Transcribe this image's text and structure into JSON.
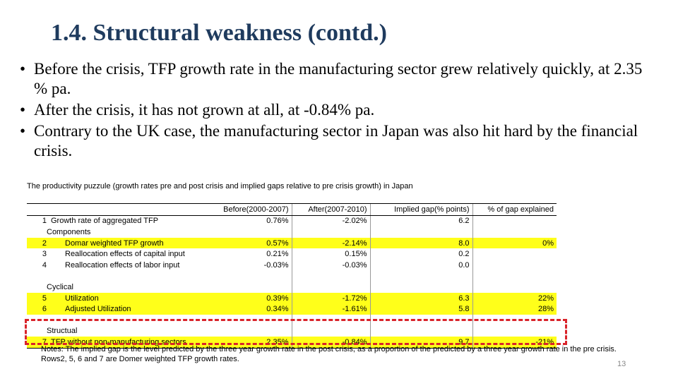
{
  "title": "1.4. Structural weakness (contd.)",
  "bullets": [
    "Before the crisis, TFP growth rate in the manufacturing sector grew relatively quickly, at 2.35 % pa.",
    "After the crisis, it has not grown at all, at -0.84% pa.",
    "Contrary to the UK case, the manufacturing sector in Japan was also hit hard by the financial crisis."
  ],
  "bullet_marker": "•",
  "table": {
    "caption": "The productivity puzzule (growth rates pre and post crisis and implied gaps relative to pre crisis growth) in Japan",
    "headers": [
      "",
      "Before(2000-2007)",
      "After(2007-2010)",
      "Implied gap(% points)",
      "% of gap explained"
    ],
    "rows": [
      {
        "num": "1",
        "label": "Growth rate of aggregated TFP",
        "before": "0.76%",
        "after": "-2.02%",
        "gap": "6.2",
        "explained": ""
      },
      {
        "num": "",
        "label": "Components",
        "before": "",
        "after": "",
        "gap": "",
        "explained": ""
      },
      {
        "num": "2",
        "label": "Domar weighted TFP growth",
        "before": "0.57%",
        "after": "-2.14%",
        "gap": "8.0",
        "explained": "0%"
      },
      {
        "num": "3",
        "label": "Reallocation effects of capital input",
        "before": "0.21%",
        "after": "0.15%",
        "gap": "0.2",
        "explained": ""
      },
      {
        "num": "4",
        "label": "Reallocation effects of labor input",
        "before": "-0.03%",
        "after": "-0.03%",
        "gap": "0.0",
        "explained": ""
      },
      {
        "num": "",
        "label": "",
        "before": "",
        "after": "",
        "gap": "",
        "explained": ""
      },
      {
        "num": "",
        "label": "Cyclical",
        "before": "",
        "after": "",
        "gap": "",
        "explained": ""
      },
      {
        "num": "5",
        "label": "Utilization",
        "before": "0.39%",
        "after": "-1.72%",
        "gap": "6.3",
        "explained": "22%"
      },
      {
        "num": "6",
        "label": "Adjusted Utilization",
        "before": "0.34%",
        "after": "-1.61%",
        "gap": "5.8",
        "explained": "28%"
      },
      {
        "num": "",
        "label": "",
        "before": "",
        "after": "",
        "gap": "",
        "explained": ""
      },
      {
        "num": "",
        "label": "Structual",
        "before": "",
        "after": "",
        "gap": "",
        "explained": ""
      },
      {
        "num": "7",
        "label": "TFP without non-manufacturing sectors",
        "before": "2.35%",
        "after": "-0.84%",
        "gap": "9.7",
        "explained": "-21%"
      }
    ]
  },
  "notes": [
    "Notes: The implied gap is the level predicted by the three year growth rate in the post crisis, as a proportion of the predicted by a three year growth rate in the pre crisis.",
    "Rows2, 5, 6 and 7 are Domer weighted TFP growth rates."
  ],
  "page_number": "13",
  "colors": {
    "title": "#1f3b5e",
    "highlight": "#ffff1a",
    "dashed_box": "#d9232a"
  }
}
